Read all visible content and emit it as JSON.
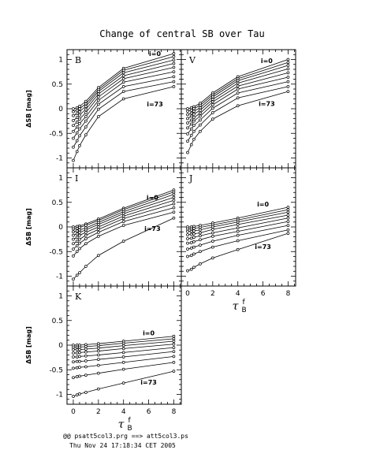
{
  "title": "Change of central SB over Tau",
  "footer": {
    "line1": "@@ psatt5col3.prg ==> att5col3.ps",
    "line2": "Thu Nov 24 17:18:34 CET 2005"
  },
  "colors": {
    "ink": "#000000",
    "background": "#ffffff"
  },
  "chart_data": [
    {
      "type": "line",
      "panel": "B",
      "xlabel": "τ",
      "xlabel_sup": "f",
      "xlabel_sub": "B",
      "ylabel": "ΔSB [mag]",
      "xlim": [
        -0.5,
        8.6
      ],
      "ylim": [
        -1.2,
        1.2
      ],
      "x": [
        0,
        0.3,
        0.5,
        1,
        2,
        4,
        8
      ],
      "x_ticks": [
        0,
        2,
        4,
        6,
        8
      ],
      "y_ticks": [
        -1,
        -0.5,
        0,
        0.5,
        1
      ],
      "grid": false,
      "series_labels": [
        {
          "text": "i=0",
          "series_index": 0,
          "x": 6.5,
          "y": 1.07
        },
        {
          "text": "i=73",
          "series_index": 8,
          "x": 6.5,
          "y": 0.05
        }
      ],
      "series": [
        {
          "values": [
            0.0,
            0.02,
            0.05,
            0.15,
            0.43,
            0.82,
            1.12
          ]
        },
        {
          "values": [
            -0.06,
            -0.03,
            0.0,
            0.1,
            0.39,
            0.78,
            1.06
          ]
        },
        {
          "values": [
            -0.14,
            -0.1,
            -0.06,
            0.05,
            0.35,
            0.73,
            0.99
          ]
        },
        {
          "values": [
            -0.24,
            -0.18,
            -0.13,
            -0.01,
            0.3,
            0.67,
            0.92
          ]
        },
        {
          "values": [
            -0.34,
            -0.27,
            -0.21,
            -0.08,
            0.24,
            0.61,
            0.84
          ]
        },
        {
          "values": [
            -0.46,
            -0.37,
            -0.3,
            -0.16,
            0.17,
            0.54,
            0.75
          ]
        },
        {
          "values": [
            -0.6,
            -0.49,
            -0.41,
            -0.25,
            0.09,
            0.45,
            0.65
          ]
        },
        {
          "values": [
            -0.78,
            -0.65,
            -0.55,
            -0.37,
            -0.01,
            0.35,
            0.55
          ]
        },
        {
          "values": [
            -1.05,
            -0.87,
            -0.75,
            -0.53,
            -0.16,
            0.2,
            0.45
          ]
        }
      ]
    },
    {
      "type": "line",
      "panel": "V",
      "xlabel": "τ",
      "xlabel_sup": "f",
      "xlabel_sub": "B",
      "ylabel": "",
      "xlim": [
        -0.5,
        8.6
      ],
      "ylim": [
        -1.2,
        1.2
      ],
      "x": [
        0,
        0.3,
        0.5,
        1,
        2,
        4,
        8
      ],
      "x_ticks": [
        0,
        2,
        4,
        6,
        8
      ],
      "y_ticks": [
        -1,
        -0.5,
        0,
        0.5,
        1
      ],
      "grid": false,
      "series_labels": [
        {
          "text": "i=0",
          "series_index": 0,
          "x": 6.3,
          "y": 0.93
        },
        {
          "text": "i=73",
          "series_index": 8,
          "x": 6.3,
          "y": 0.06
        }
      ],
      "series": [
        {
          "values": [
            0.0,
            0.02,
            0.04,
            0.11,
            0.32,
            0.65,
            1.0
          ]
        },
        {
          "values": [
            -0.05,
            -0.03,
            0.0,
            0.07,
            0.28,
            0.61,
            0.94
          ]
        },
        {
          "values": [
            -0.12,
            -0.09,
            -0.05,
            0.02,
            0.24,
            0.57,
            0.88
          ]
        },
        {
          "values": [
            -0.2,
            -0.15,
            -0.11,
            -0.03,
            0.19,
            0.52,
            0.81
          ]
        },
        {
          "values": [
            -0.29,
            -0.23,
            -0.18,
            -0.09,
            0.14,
            0.46,
            0.73
          ]
        },
        {
          "values": [
            -0.39,
            -0.31,
            -0.25,
            -0.15,
            0.08,
            0.4,
            0.64
          ]
        },
        {
          "values": [
            -0.51,
            -0.41,
            -0.34,
            -0.23,
            0.01,
            0.32,
            0.55
          ]
        },
        {
          "values": [
            -0.66,
            -0.54,
            -0.46,
            -0.33,
            -0.08,
            0.22,
            0.45
          ]
        },
        {
          "values": [
            -0.89,
            -0.73,
            -0.62,
            -0.46,
            -0.21,
            0.06,
            0.35
          ]
        }
      ]
    },
    {
      "type": "line",
      "panel": "I",
      "xlabel": "τ",
      "xlabel_sup": "f",
      "xlabel_sub": "B",
      "ylabel": "ΔSB [mag]",
      "xlim": [
        -0.5,
        8.6
      ],
      "ylim": [
        -1.2,
        1.2
      ],
      "x": [
        0,
        0.3,
        0.5,
        1,
        2,
        4,
        8
      ],
      "x_ticks": [
        0,
        2,
        4,
        6,
        8
      ],
      "y_ticks": [
        -1,
        -0.5,
        0,
        0.5,
        1
      ],
      "grid": false,
      "series_labels": [
        {
          "text": "i=0",
          "series_index": 0,
          "x": 6.3,
          "y": 0.55
        },
        {
          "text": "i=73",
          "series_index": 8,
          "x": 6.3,
          "y": -0.08
        }
      ],
      "series": [
        {
          "values": [
            0.0,
            0.01,
            0.02,
            0.06,
            0.16,
            0.38,
            0.75
          ]
        },
        {
          "values": [
            -0.04,
            -0.03,
            -0.01,
            0.03,
            0.13,
            0.35,
            0.71
          ]
        },
        {
          "values": [
            -0.1,
            -0.08,
            -0.06,
            -0.02,
            0.09,
            0.31,
            0.66
          ]
        },
        {
          "values": [
            -0.17,
            -0.14,
            -0.11,
            -0.06,
            0.05,
            0.27,
            0.6
          ]
        },
        {
          "values": [
            -0.25,
            -0.21,
            -0.17,
            -0.11,
            0.0,
            0.22,
            0.54
          ]
        },
        {
          "values": [
            -0.34,
            -0.29,
            -0.25,
            -0.17,
            -0.05,
            0.17,
            0.47
          ]
        },
        {
          "values": [
            -0.45,
            -0.38,
            -0.33,
            -0.24,
            -0.11,
            0.11,
            0.39
          ]
        },
        {
          "values": [
            -0.59,
            -0.5,
            -0.44,
            -0.34,
            -0.19,
            0.03,
            0.3
          ]
        },
        {
          "values": [
            -1.06,
            -0.98,
            -0.93,
            -0.8,
            -0.58,
            -0.29,
            0.18
          ]
        }
      ]
    },
    {
      "type": "line",
      "panel": "J",
      "xlabel": "τ",
      "xlabel_sup": "f",
      "xlabel_sub": "B",
      "ylabel": "",
      "xlim": [
        -0.5,
        8.6
      ],
      "ylim": [
        -1.2,
        1.2
      ],
      "x": [
        0,
        0.3,
        0.5,
        1,
        2,
        4,
        8
      ],
      "x_ticks": [
        0,
        2,
        4,
        6,
        8
      ],
      "y_ticks": [
        -1,
        -0.5,
        0,
        0.5,
        1
      ],
      "grid": false,
      "series_labels": [
        {
          "text": "i=0",
          "series_index": 0,
          "x": 6.0,
          "y": 0.42
        },
        {
          "text": "i=73",
          "series_index": 8,
          "x": 6.0,
          "y": -0.45
        }
      ],
      "series": [
        {
          "values": [
            0.0,
            0.0,
            0.01,
            0.03,
            0.08,
            0.18,
            0.4
          ]
        },
        {
          "values": [
            -0.04,
            -0.04,
            -0.03,
            -0.01,
            0.04,
            0.14,
            0.35
          ]
        },
        {
          "values": [
            -0.09,
            -0.09,
            -0.08,
            -0.06,
            0.0,
            0.1,
            0.3
          ]
        },
        {
          "values": [
            -0.16,
            -0.15,
            -0.14,
            -0.12,
            -0.05,
            0.05,
            0.24
          ]
        },
        {
          "values": [
            -0.24,
            -0.23,
            -0.21,
            -0.18,
            -0.12,
            -0.02,
            0.18
          ]
        },
        {
          "values": [
            -0.33,
            -0.32,
            -0.3,
            -0.26,
            -0.19,
            -0.09,
            0.11
          ]
        },
        {
          "values": [
            -0.45,
            -0.43,
            -0.41,
            -0.37,
            -0.29,
            -0.17,
            0.03
          ]
        },
        {
          "values": [
            -0.6,
            -0.58,
            -0.55,
            -0.5,
            -0.41,
            -0.28,
            -0.06
          ]
        },
        {
          "values": [
            -0.89,
            -0.86,
            -0.82,
            -0.75,
            -0.63,
            -0.46,
            -0.13
          ]
        }
      ]
    },
    {
      "type": "line",
      "panel": "K",
      "xlabel": "τ",
      "xlabel_sup": "f",
      "xlabel_sub": "B",
      "ylabel": "ΔSB [mag]",
      "xlim": [
        -0.5,
        8.6
      ],
      "ylim": [
        -1.2,
        1.2
      ],
      "x": [
        0,
        0.3,
        0.5,
        1,
        2,
        4,
        8
      ],
      "x_ticks": [
        0,
        2,
        4,
        6,
        8
      ],
      "y_ticks": [
        -1,
        -0.5,
        0,
        0.5,
        1
      ],
      "grid": false,
      "series_labels": [
        {
          "text": "i=0",
          "series_index": 0,
          "x": 6.0,
          "y": 0.2
        },
        {
          "text": "i=73",
          "series_index": 8,
          "x": 6.0,
          "y": -0.8
        }
      ],
      "series": [
        {
          "values": [
            0.0,
            0.0,
            0.0,
            0.01,
            0.03,
            0.08,
            0.18
          ]
        },
        {
          "values": [
            -0.04,
            -0.04,
            -0.04,
            -0.03,
            -0.01,
            0.04,
            0.13
          ]
        },
        {
          "values": [
            -0.09,
            -0.09,
            -0.09,
            -0.08,
            -0.06,
            -0.01,
            0.08
          ]
        },
        {
          "values": [
            -0.16,
            -0.16,
            -0.15,
            -0.14,
            -0.12,
            -0.07,
            0.02
          ]
        },
        {
          "values": [
            -0.24,
            -0.24,
            -0.23,
            -0.22,
            -0.2,
            -0.15,
            -0.05
          ]
        },
        {
          "values": [
            -0.34,
            -0.33,
            -0.33,
            -0.32,
            -0.29,
            -0.24,
            -0.13
          ]
        },
        {
          "values": [
            -0.47,
            -0.46,
            -0.45,
            -0.44,
            -0.41,
            -0.35,
            -0.23
          ]
        },
        {
          "values": [
            -0.66,
            -0.64,
            -0.63,
            -0.61,
            -0.57,
            -0.49,
            -0.35
          ]
        },
        {
          "values": [
            -1.04,
            -1.01,
            -0.99,
            -0.96,
            -0.89,
            -0.77,
            -0.53
          ]
        }
      ]
    }
  ]
}
